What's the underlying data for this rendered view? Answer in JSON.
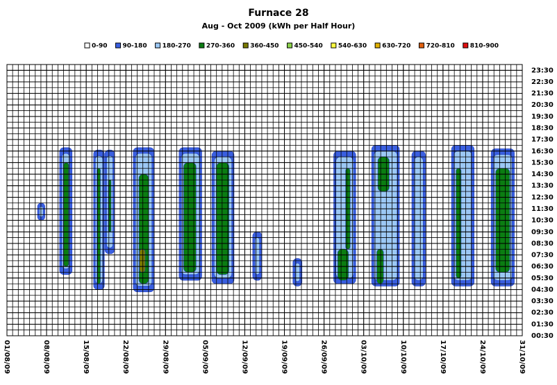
{
  "chart_data": {
    "type": "contour",
    "title": "Furnace 28",
    "subtitle": "Aug - Oct 2009 (kWh per Half Hour)",
    "series": [
      {
        "name": "0-90",
        "color": "#ffffff"
      },
      {
        "name": "90-180",
        "color": "#3a5fe0"
      },
      {
        "name": "180-270",
        "color": "#9cc8f5"
      },
      {
        "name": "270-360",
        "color": "#0b7d12"
      },
      {
        "name": "360-450",
        "color": "#7a7a00"
      },
      {
        "name": "450-540",
        "color": "#8bd24b"
      },
      {
        "name": "540-630",
        "color": "#ffff40"
      },
      {
        "name": "630-720",
        "color": "#e0b000"
      },
      {
        "name": "720-810",
        "color": "#e06010"
      },
      {
        "name": "810-900",
        "color": "#e01010"
      }
    ],
    "blobs": [
      {
        "x": [
          5.4,
          6.7
        ],
        "y": [
          10.5,
          12.0
        ],
        "kwh": 135
      },
      {
        "x": [
          5.7,
          6.4
        ],
        "y": [
          10.8,
          11.7
        ],
        "kwh": 225
      },
      {
        "x": [
          9.3,
          11.5
        ],
        "y": [
          5.8,
          16.8
        ],
        "kwh": 135
      },
      {
        "x": [
          9.7,
          11.1
        ],
        "y": [
          6.3,
          16.3
        ],
        "kwh": 225
      },
      {
        "x": [
          10,
          10.9
        ],
        "y": [
          6.5,
          15.5
        ],
        "kwh": 315
      },
      {
        "x": [
          15.3,
          17.2
        ],
        "y": [
          4.5,
          16.6
        ],
        "kwh": 135
      },
      {
        "x": [
          15.6,
          16.9
        ],
        "y": [
          5,
          16.1
        ],
        "kwh": 225
      },
      {
        "x": [
          15.9,
          16.5
        ],
        "y": [
          5,
          15
        ],
        "kwh": 315
      },
      {
        "x": [
          17.3,
          19.0
        ],
        "y": [
          7.6,
          16.6
        ],
        "kwh": 135
      },
      {
        "x": [
          17.6,
          18.7
        ],
        "y": [
          8.1,
          16.1
        ],
        "kwh": 225
      },
      {
        "x": [
          17.9,
          18.4
        ],
        "y": [
          9.5,
          14
        ],
        "kwh": 315
      },
      {
        "x": [
          22.3,
          26.0
        ],
        "y": [
          4.3,
          16.8
        ],
        "kwh": 135
      },
      {
        "x": [
          22.7,
          25.6
        ],
        "y": [
          4.8,
          16.3
        ],
        "kwh": 225
      },
      {
        "x": [
          23.3,
          25.0
        ],
        "y": [
          5.0,
          14.5
        ],
        "kwh": 315
      },
      {
        "x": [
          23.4,
          24.4
        ],
        "y": [
          6.0,
          8.0
        ],
        "kwh": 405
      },
      {
        "x": [
          30.4,
          34.4
        ],
        "y": [
          5.3,
          16.8
        ],
        "kwh": 135
      },
      {
        "x": [
          30.8,
          34.0
        ],
        "y": [
          5.8,
          16.3
        ],
        "kwh": 225
      },
      {
        "x": [
          31.2,
          33.4
        ],
        "y": [
          6,
          15.5
        ],
        "kwh": 315
      },
      {
        "x": [
          36.2,
          40.1
        ],
        "y": [
          5,
          16.5
        ],
        "kwh": 135
      },
      {
        "x": [
          36.6,
          39.7
        ],
        "y": [
          5.5,
          16
        ],
        "kwh": 225
      },
      {
        "x": [
          37,
          39.2
        ],
        "y": [
          5.8,
          15.5
        ],
        "kwh": 315
      },
      {
        "x": [
          43.4,
          45
        ],
        "y": [
          5.3,
          9.5
        ],
        "kwh": 135
      },
      {
        "x": [
          43.8,
          44.6
        ],
        "y": [
          5.8,
          9
        ],
        "kwh": 225
      },
      {
        "x": [
          50.5,
          52.1
        ],
        "y": [
          4.8,
          7.2
        ],
        "kwh": 135
      },
      {
        "x": [
          50.9,
          51.7
        ],
        "y": [
          5.2,
          6.8
        ],
        "kwh": 225
      },
      {
        "x": [
          57.7,
          61.6
        ],
        "y": [
          5,
          16.5
        ],
        "kwh": 135
      },
      {
        "x": [
          58.1,
          61.2
        ],
        "y": [
          5.5,
          16
        ],
        "kwh": 225
      },
      {
        "x": [
          58.4,
          60.3
        ],
        "y": [
          5.3,
          8
        ],
        "kwh": 315
      },
      {
        "x": [
          59.8,
          60.6
        ],
        "y": [
          8,
          15
        ],
        "kwh": 315
      },
      {
        "x": [
          64.4,
          69.3
        ],
        "y": [
          4.8,
          17
        ],
        "kwh": 135
      },
      {
        "x": [
          64.8,
          68.9
        ],
        "y": [
          5.3,
          16.5
        ],
        "kwh": 225
      },
      {
        "x": [
          65.5,
          67.5
        ],
        "y": [
          13,
          16
        ],
        "kwh": 315
      },
      {
        "x": [
          65.3,
          66.5
        ],
        "y": [
          5,
          8
        ],
        "kwh": 315
      },
      {
        "x": [
          71.5,
          73.9
        ],
        "y": [
          4.8,
          16.5
        ],
        "kwh": 135
      },
      {
        "x": [
          71.9,
          73.5
        ],
        "y": [
          5.3,
          16
        ],
        "kwh": 225
      },
      {
        "x": [
          78.5,
          82.5
        ],
        "y": [
          4.8,
          17
        ],
        "kwh": 135
      },
      {
        "x": [
          78.9,
          82.1
        ],
        "y": [
          5.3,
          16.5
        ],
        "kwh": 225
      },
      {
        "x": [
          79.3,
          80.2
        ],
        "y": [
          5.5,
          15
        ],
        "kwh": 315
      },
      {
        "x": [
          85.5,
          89.6
        ],
        "y": [
          4.8,
          16.7
        ],
        "kwh": 135
      },
      {
        "x": [
          85.9,
          89.2
        ],
        "y": [
          5.3,
          16.2
        ],
        "kwh": 225
      },
      {
        "x": [
          86.3,
          88.8
        ],
        "y": [
          6,
          15
        ],
        "kwh": 315
      }
    ],
    "xlim": [
      0,
      91
    ],
    "xticks": [
      {
        "value": 0,
        "label": "01/08/09"
      },
      {
        "value": 7,
        "label": "08/08/09"
      },
      {
        "value": 14,
        "label": "15/08/09"
      },
      {
        "value": 21,
        "label": "22/08/09"
      },
      {
        "value": 28,
        "label": "29/08/09"
      },
      {
        "value": 35,
        "label": "05/09/09"
      },
      {
        "value": 42,
        "label": "12/09/09"
      },
      {
        "value": 49,
        "label": "19/09/09"
      },
      {
        "value": 56,
        "label": "26/09/09"
      },
      {
        "value": 63,
        "label": "03/10/09"
      },
      {
        "value": 70,
        "label": "10/10/09"
      },
      {
        "value": 77,
        "label": "17/10/09"
      },
      {
        "value": 84,
        "label": "24/10/09"
      },
      {
        "value": 91,
        "label": "31/10/09"
      }
    ],
    "ylim": [
      0.5,
      24
    ],
    "yticks": [
      {
        "value": 0.5,
        "label": "00:30"
      },
      {
        "value": 1.5,
        "label": "01:30"
      },
      {
        "value": 2.5,
        "label": "02:30"
      },
      {
        "value": 3.5,
        "label": "03:30"
      },
      {
        "value": 4.5,
        "label": "04:30"
      },
      {
        "value": 5.5,
        "label": "05:30"
      },
      {
        "value": 6.5,
        "label": "06:30"
      },
      {
        "value": 7.5,
        "label": "07:30"
      },
      {
        "value": 8.5,
        "label": "08:30"
      },
      {
        "value": 9.5,
        "label": "09:30"
      },
      {
        "value": 10.5,
        "label": "10:30"
      },
      {
        "value": 11.5,
        "label": "11:30"
      },
      {
        "value": 12.5,
        "label": "12:30"
      },
      {
        "value": 13.5,
        "label": "13:30"
      },
      {
        "value": 14.5,
        "label": "14:30"
      },
      {
        "value": 15.5,
        "label": "15:30"
      },
      {
        "value": 16.5,
        "label": "16:30"
      },
      {
        "value": 17.5,
        "label": "17:30"
      },
      {
        "value": 18.5,
        "label": "18:30"
      },
      {
        "value": 19.5,
        "label": "19:30"
      },
      {
        "value": 20.5,
        "label": "20:30"
      },
      {
        "value": 21.5,
        "label": "21:30"
      },
      {
        "value": 22.5,
        "label": "22:30"
      },
      {
        "value": 23.5,
        "label": "23:30"
      }
    ],
    "grid": true
  }
}
